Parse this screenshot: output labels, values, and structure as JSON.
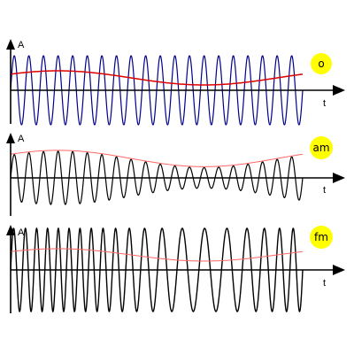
{
  "colors": {
    "background": "#ffffff",
    "axis": "#000000",
    "badge": "#ffff00",
    "panel_o_carrier": "#00008b",
    "panel_o_message": "#dd0000",
    "panel_am_carrier": "#000000",
    "panel_am_message": "#ff6666",
    "panel_fm_carrier": "#000000",
    "panel_fm_message": "#ff6666"
  },
  "panels": [
    {
      "id": "o",
      "badge": "o",
      "y_axis_label": "A",
      "x_axis_label": "t",
      "modulation": "none",
      "carrier_cycles": 20,
      "amplitude": 1.0
    },
    {
      "id": "am",
      "badge": "am",
      "y_axis_label": "A",
      "x_axis_label": "t",
      "modulation": "amplitude",
      "carrier_cycles": 20,
      "amplitude": 1.0
    },
    {
      "id": "fm",
      "badge": "fm",
      "y_axis_label": "A",
      "x_axis_label": "t",
      "modulation": "frequency",
      "carrier_cycles": 20,
      "amplitude": 1.0
    }
  ]
}
